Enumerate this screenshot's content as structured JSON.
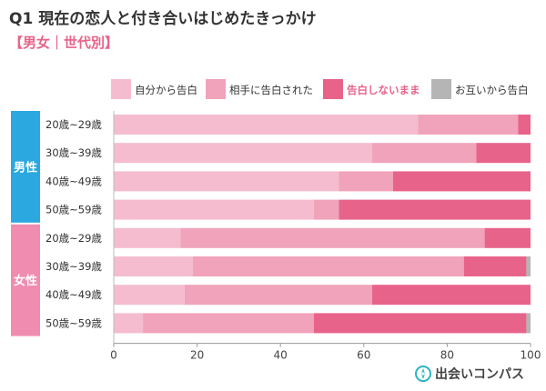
{
  "header": {
    "question_no": "Q1",
    "title": "現在の恋人と付き合いはじめたきっかけ",
    "subtitle": "【男女｜世代別】"
  },
  "brand": {
    "name": "出会いコンパス",
    "icon": "compass-icon",
    "color": "#2bb3c0"
  },
  "chart_data": {
    "type": "bar",
    "orientation": "horizontal",
    "stacked": true,
    "title": "現在の恋人と付き合いはじめたきっかけ",
    "subtitle": "【男女｜世代別】",
    "xlim": [
      0,
      100
    ],
    "xticks": [
      0,
      20,
      40,
      60,
      80,
      100
    ],
    "grid": false,
    "legend_position": "top",
    "groups": [
      {
        "label": "男性",
        "color": "#2aa8df",
        "categories": [
          "20歳~29歳",
          "30歳~39歳",
          "40歳~49歳",
          "50歳~59歳"
        ]
      },
      {
        "label": "女性",
        "color": "#f08cb0",
        "categories": [
          "20歳~29歳",
          "30歳~39歳",
          "40歳~49歳",
          "50歳~59歳"
        ]
      }
    ],
    "categories": [
      "20歳~29歳",
      "30歳~39歳",
      "40歳~49歳",
      "50歳~59歳",
      "20歳~29歳",
      "30歳~39歳",
      "40歳~49歳",
      "50歳~59歳"
    ],
    "series": [
      {
        "name": "自分から告白",
        "color": "#f5bcd0",
        "values": [
          73,
          62,
          54,
          48,
          16,
          19,
          17,
          7
        ]
      },
      {
        "name": "相手に告白された",
        "color": "#f0a3ba",
        "values": [
          24,
          25,
          13,
          6,
          73,
          65,
          45,
          41
        ]
      },
      {
        "name": "告白しないまま",
        "color": "#e8638a",
        "highlight": true,
        "values": [
          3,
          13,
          33,
          46,
          11,
          15,
          38,
          51
        ]
      },
      {
        "name": "お互いから告白",
        "color": "#b5b5b5",
        "values": [
          0,
          0,
          0,
          0,
          0,
          1,
          0,
          1
        ]
      }
    ]
  }
}
